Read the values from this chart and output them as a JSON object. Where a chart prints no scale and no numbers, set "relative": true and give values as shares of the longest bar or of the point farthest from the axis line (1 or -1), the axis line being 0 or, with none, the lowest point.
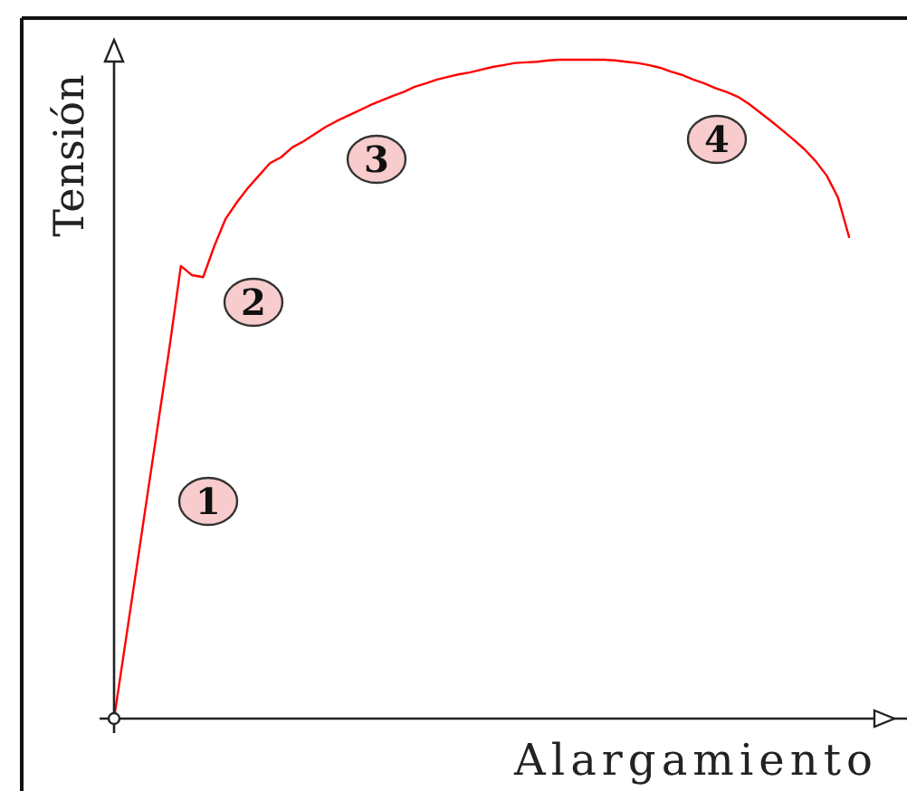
{
  "chart_data": {
    "type": "line",
    "xlabel": "Alargamiento",
    "ylabel": "Tensión",
    "relative": true,
    "categories": [
      null,
      null,
      null,
      null,
      null,
      null,
      null,
      null,
      null,
      null,
      null,
      null,
      null,
      null,
      null,
      null,
      null,
      null,
      null,
      null,
      null,
      null,
      null,
      null,
      null,
      null,
      null,
      null,
      null,
      null,
      null,
      null,
      null,
      null,
      null,
      null,
      null,
      null,
      null,
      null,
      null,
      null,
      null,
      null,
      null,
      null,
      null,
      null,
      null,
      null,
      null,
      null,
      null,
      null,
      null,
      null,
      null,
      null,
      null,
      null,
      null,
      null,
      null,
      null,
      null,
      null,
      null
    ],
    "color": "#ff0000",
    "values": [
      0,
      0.113,
      0.226,
      0.34,
      0.453,
      0.566,
      0.687,
      0.673,
      0.67,
      0.717,
      0.758,
      0.783,
      0.805,
      0.824,
      0.843,
      0.852,
      0.867,
      0.876,
      0.887,
      0.898,
      0.907,
      0.915,
      0.923,
      0.931,
      0.938,
      0.945,
      0.951,
      0.959,
      0.964,
      0.97,
      0.974,
      0.978,
      0.981,
      0.985,
      0.989,
      0.992,
      0.995,
      0.996,
      0.997,
      0.999,
      1,
      1,
      1,
      1,
      1,
      0.999,
      0.997,
      0.995,
      0.992,
      0.988,
      0.982,
      0.977,
      0.97,
      0.964,
      0.957,
      0.951,
      0.944,
      0.933,
      0.92,
      0.907,
      0.893,
      0.879,
      0.864,
      0.846,
      0.824,
      0.791,
      0.731
    ],
    "annotations": [
      "1",
      "2",
      "3",
      "4"
    ]
  }
}
